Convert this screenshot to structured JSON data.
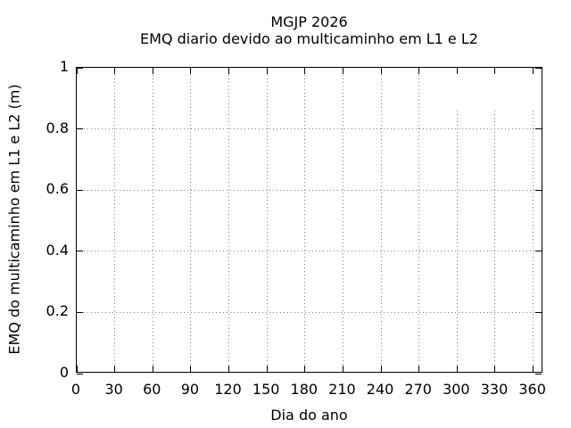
{
  "figure": {
    "background": "#ffffff",
    "text_color": "#000000",
    "axis_color": "#000000",
    "grid_color": "#7d7d7d"
  },
  "chart_data": {
    "type": "line",
    "title": "MGJP 2026",
    "subtitle": "EMQ diario devido ao multicaminho em L1 e L2",
    "xlabel": "Dia do ano",
    "ylabel": "EMQ do multicaminho em L1 e L2 (m)",
    "xlim": [
      0,
      368
    ],
    "ylim": [
      0,
      1
    ],
    "xticks": [
      0,
      30,
      60,
      90,
      120,
      150,
      180,
      210,
      240,
      270,
      300,
      330,
      360
    ],
    "yticks": [
      0,
      0.2,
      0.4,
      0.6,
      0.8,
      1
    ],
    "ytick_labels": [
      "0",
      "0.2",
      "0.4",
      "0.6",
      "0.8",
      "1"
    ],
    "grid": true,
    "ticks_mirrored_inward": true,
    "series": [],
    "legend": {
      "position": "top-right",
      "entries": [],
      "blank_opaque_box": true,
      "masked_gridlines_from_x": 300,
      "mask_bottom_value": 0.86
    }
  }
}
